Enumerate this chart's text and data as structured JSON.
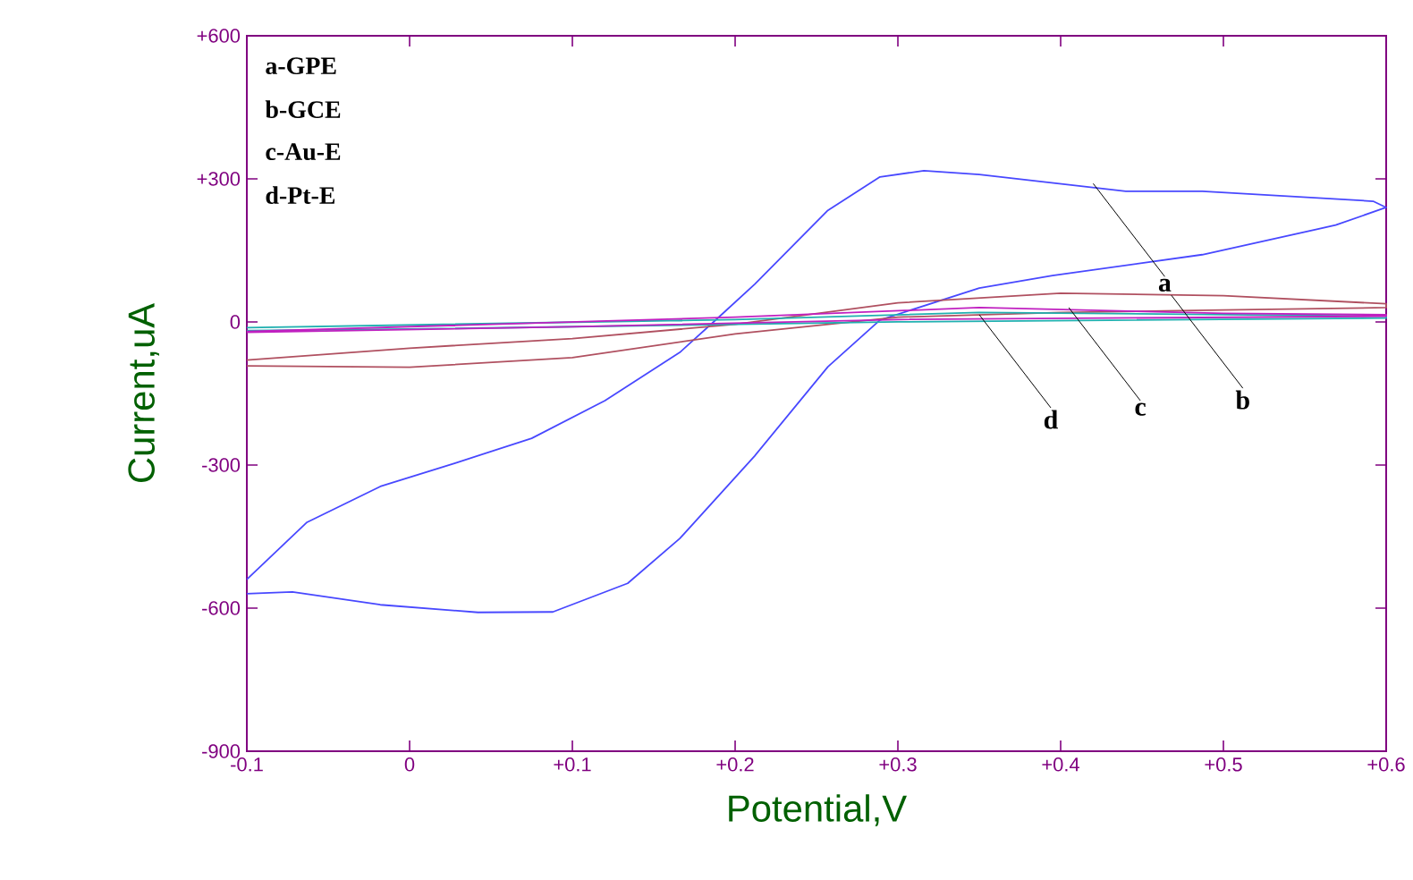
{
  "chart_data": {
    "type": "line",
    "xlabel": "Potential,V",
    "ylabel": "Current,uA",
    "xlim": [
      -0.1,
      0.6
    ],
    "ylim": [
      -900,
      600
    ],
    "xticks": [
      {
        "value": -0.1,
        "label": "-0.1"
      },
      {
        "value": 0,
        "label": "0"
      },
      {
        "value": 0.1,
        "label": "+0.1"
      },
      {
        "value": 0.2,
        "label": "+0.2"
      },
      {
        "value": 0.3,
        "label": "+0.3"
      },
      {
        "value": 0.4,
        "label": "+0.4"
      },
      {
        "value": 0.5,
        "label": "+0.5"
      },
      {
        "value": 0.6,
        "label": "+0.6"
      }
    ],
    "yticks": [
      {
        "value": -900,
        "label": "-900"
      },
      {
        "value": -600,
        "label": "-600"
      },
      {
        "value": -300,
        "label": "-300"
      },
      {
        "value": 0,
        "label": "0"
      },
      {
        "value": 300,
        "label": "+300"
      },
      {
        "value": 600,
        "label": "+600"
      }
    ],
    "grid": false,
    "marker": "none",
    "line_style": "solid",
    "series": [
      {
        "color": "#4848ff",
        "x": [
          -0.1,
          -0.063,
          -0.018,
          0.028,
          0.075,
          0.12,
          0.166,
          0.189,
          0.212,
          0.257,
          0.289,
          0.316,
          0.35,
          0.44,
          0.487,
          0.592,
          0.6,
          0.569,
          0.487,
          0.395,
          0.35,
          0.289,
          0.257,
          0.212,
          0.166,
          0.134,
          0.088,
          0.042,
          -0.018,
          -0.072,
          -0.1
        ],
        "values": [
          -540,
          -420,
          -345,
          -296,
          -244,
          -165,
          -64,
          7,
          79,
          234,
          304,
          317,
          309,
          274,
          274,
          253,
          240,
          203,
          141,
          97,
          71,
          4,
          -94,
          -281,
          -454,
          -548,
          -608,
          -609,
          -593,
          -566,
          -570
        ]
      },
      {
        "color": "#b05060",
        "x": [
          -0.1,
          0,
          0.1,
          0.2,
          0.3,
          0.4,
          0.5,
          0.6,
          0.6,
          0.5,
          0.4,
          0.3,
          0.2,
          0.1,
          0,
          -0.1
        ],
        "values": [
          -80,
          -55,
          -35,
          -5,
          40,
          60,
          55,
          38,
          30,
          25,
          20,
          10,
          -25,
          -75,
          -95,
          -92
        ]
      },
      {
        "color": "#20b0b0",
        "x": [
          -0.1,
          0.2,
          0.35,
          0.6,
          0.6,
          0.3,
          0,
          -0.1
        ],
        "values": [
          -12,
          5,
          20,
          12,
          8,
          0,
          -15,
          -18
        ]
      },
      {
        "color": "#c020c0",
        "x": [
          -0.1,
          0.2,
          0.35,
          0.5,
          0.6,
          0.6,
          0.3,
          0.1,
          -0.1
        ],
        "values": [
          -20,
          10,
          30,
          18,
          15,
          12,
          5,
          -10,
          -22
        ]
      }
    ],
    "annotations": [
      "a-GPE",
      "b-GCE",
      "c-Au-E",
      "d-Pt-E",
      {
        "text": "a",
        "x": 0.42,
        "y": 290
      },
      {
        "text": "b",
        "x": 0.468,
        "y": 56
      },
      {
        "text": "c",
        "x": 0.405,
        "y": 30
      },
      {
        "text": "d",
        "x": 0.35,
        "y": 15
      }
    ]
  }
}
